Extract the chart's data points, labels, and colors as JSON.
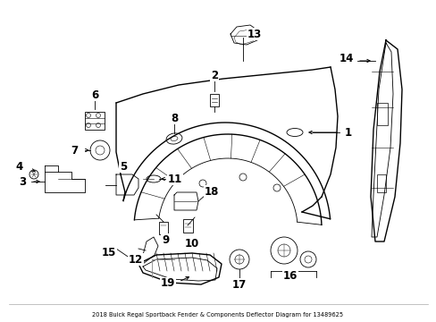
{
  "title": "2018 Buick Regal Sportback Fender & Components Deflector Diagram for 13489625",
  "bg_color": "#ffffff",
  "fig_width": 4.89,
  "fig_height": 3.6,
  "dpi": 100,
  "line_color": "#000000",
  "label_fontsize": 8.5
}
